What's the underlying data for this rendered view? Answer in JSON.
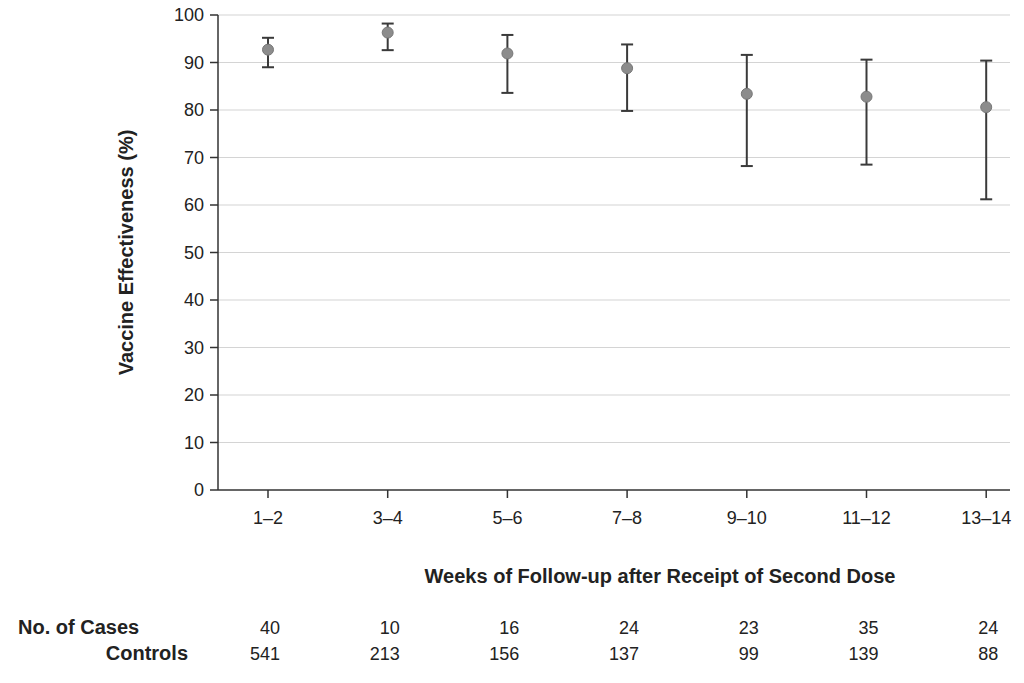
{
  "chart_data": {
    "type": "scatter",
    "x_label": "Weeks of Follow-up after Receipt of Second Dose",
    "y_label": "Vaccine Effectiveness (%)",
    "categories": [
      "1–2",
      "3–4",
      "5–6",
      "7–8",
      "9–10",
      "11–12",
      "13–14"
    ],
    "values": [
      92.7,
      96.3,
      91.9,
      88.8,
      83.4,
      82.8,
      80.6
    ],
    "ci_low": [
      89.0,
      92.6,
      83.6,
      79.8,
      68.2,
      68.5,
      61.2
    ],
    "ci_high": [
      95.2,
      98.2,
      95.8,
      93.8,
      91.6,
      90.6,
      90.4
    ],
    "color": "#8c8c8c",
    "ylim": [
      0,
      100
    ],
    "yticks": [
      0,
      10,
      20,
      30,
      40,
      50,
      60,
      70,
      80,
      90,
      100
    ],
    "grid": true,
    "rows": [
      {
        "label": "No. of Cases",
        "values": [
          40,
          10,
          16,
          24,
          23,
          35,
          24
        ]
      },
      {
        "label": "Controls",
        "values": [
          541,
          213,
          156,
          137,
          99,
          139,
          88
        ]
      }
    ]
  }
}
